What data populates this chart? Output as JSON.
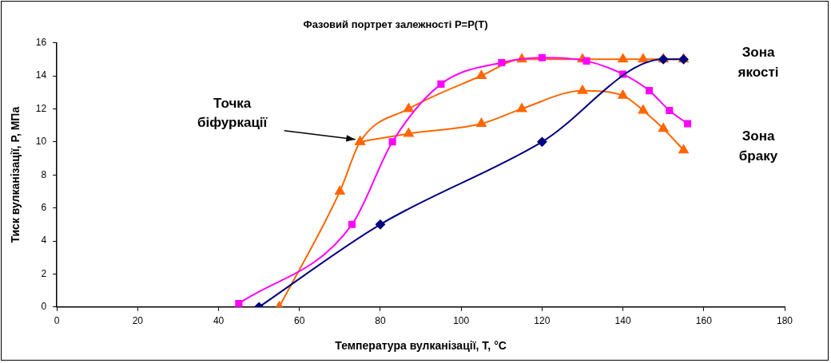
{
  "chart_data": {
    "type": "line",
    "title": "Фазовий портрет залежності P=P(T)",
    "xlabel": "Температура вулканізації, T, °C",
    "ylabel": "Тиск вулканізації, P, МПа",
    "xlim": [
      0,
      180
    ],
    "xticks": [
      0,
      20,
      40,
      60,
      80,
      100,
      120,
      140,
      160,
      180
    ],
    "ylim": [
      0,
      16
    ],
    "yticks": [
      0,
      2,
      4,
      6,
      8,
      10,
      12,
      14,
      16
    ],
    "grid": false,
    "legend": false,
    "series": [
      {
        "color": "#000080",
        "marker": "diamond",
        "x": [
          50,
          80,
          120,
          150,
          155
        ],
        "values": [
          0,
          5,
          10,
          15,
          15
        ]
      },
      {
        "color": "#ff00ff",
        "marker": "square",
        "x": [
          45,
          73,
          83,
          95,
          110,
          120,
          131,
          140,
          146.5,
          151.5,
          156
        ],
        "values": [
          0.2,
          5,
          10,
          13.5,
          14.8,
          15.1,
          14.9,
          14.1,
          13.1,
          11.9,
          11.1
        ]
      },
      {
        "color": "#ff6600",
        "marker": "triangle",
        "x": [
          55,
          70,
          75,
          87,
          105,
          115,
          130,
          140,
          145,
          150,
          155
        ],
        "values": [
          0,
          7,
          10,
          12,
          14,
          15,
          15,
          15,
          15,
          15,
          15
        ]
      },
      {
        "color": "#ff6600",
        "marker": "triangle",
        "x": [
          75,
          87,
          105,
          115,
          130,
          140,
          145,
          150,
          155
        ],
        "values": [
          10,
          10.5,
          11.1,
          12,
          13.1,
          12.8,
          11.9,
          10.8,
          9.5
        ]
      }
    ],
    "annotations": [
      {
        "text": "Точка\nбіфуркації",
        "x": 75,
        "y": 10
      },
      "Зона\nякості",
      "Зона\nбраку"
    ]
  }
}
